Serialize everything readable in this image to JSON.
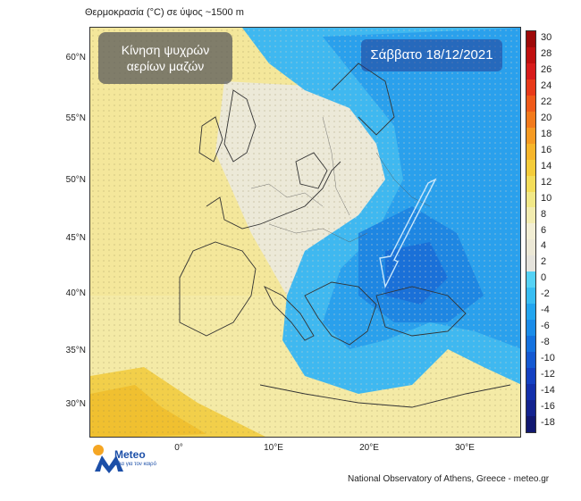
{
  "title": "Θερμοκρασία (°C) σε ύψος ~1500 m",
  "badge_left": {
    "line1": "Κίνηση ψυχρών",
    "line2": "αερίων μαζών"
  },
  "badge_right": "Σάββατο 18/12/2021",
  "latitudes": [
    "60°N",
    "55°N",
    "50°N",
    "45°N",
    "40°N",
    "35°N",
    "30°N"
  ],
  "longitudes": [
    "0°",
    "10°E",
    "20°E",
    "30°E"
  ],
  "colorbar": {
    "labels": [
      "30",
      "28",
      "26",
      "24",
      "22",
      "20",
      "18",
      "16",
      "14",
      "12",
      "10",
      "8",
      "6",
      "4",
      "2",
      "0",
      "-2",
      "-4",
      "-6",
      "-8",
      "-10",
      "-12",
      "-14",
      "-16",
      "-18"
    ],
    "colors": [
      "#9e0a0a",
      "#c01010",
      "#d81c1c",
      "#e83a1a",
      "#ef5a1a",
      "#f27a1c",
      "#f59a22",
      "#f6b52a",
      "#f4cc3a",
      "#f3dd5a",
      "#f1e887",
      "#f2ecb0",
      "#f2eed4",
      "#ece8d6",
      "#e5e3dc",
      "#55d2f5",
      "#38bdf2",
      "#22a5ef",
      "#1a8ce9",
      "#1472df",
      "#1459d2",
      "#1441c2",
      "#1330ab",
      "#13238f",
      "#111870"
    ]
  },
  "logo": {
    "name": "Meteo",
    "tagline": "Όλα για τον καιρό"
  },
  "credit": "National Observatory of Athens, Greece - meteo.gr"
}
